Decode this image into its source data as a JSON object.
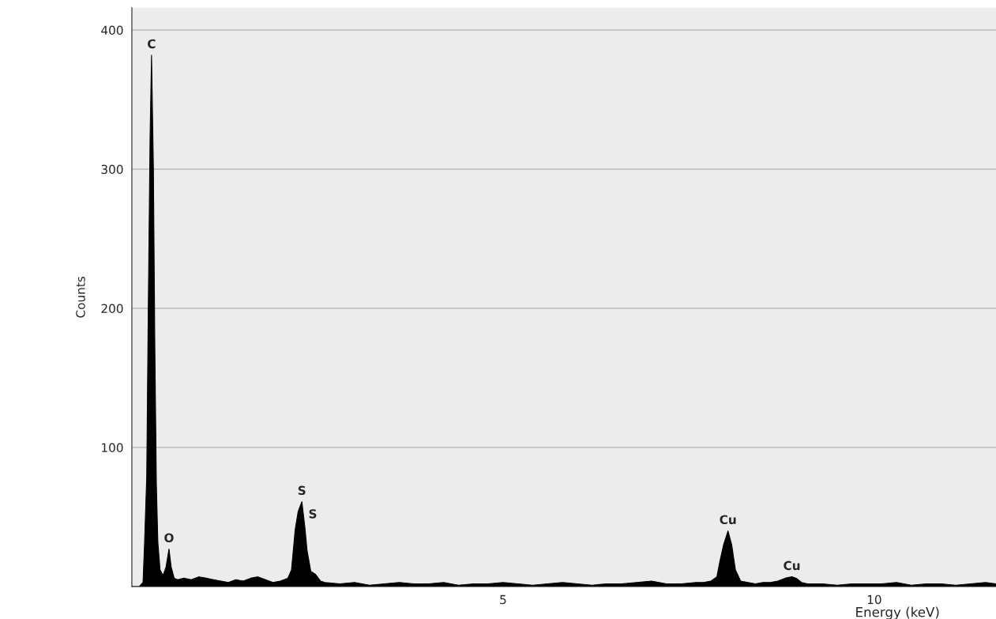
{
  "chart_data": {
    "type": "area",
    "xlabel": "Energy (keV)",
    "ylabel": "Counts",
    "x": [
      0.0,
      0.1,
      0.15,
      0.17,
      0.2,
      0.22,
      0.245,
      0.265,
      0.29,
      0.31,
      0.33,
      0.35,
      0.38,
      0.42,
      0.46,
      0.5,
      0.53,
      0.57,
      0.62,
      0.7,
      0.8,
      0.9,
      1.0,
      1.1,
      1.2,
      1.3,
      1.4,
      1.5,
      1.6,
      1.7,
      1.8,
      1.9,
      2.0,
      2.1,
      2.15,
      2.2,
      2.24,
      2.29,
      2.33,
      2.36,
      2.41,
      2.47,
      2.54,
      2.6,
      2.8,
      3.0,
      3.2,
      3.4,
      3.6,
      3.8,
      4.0,
      4.2,
      4.4,
      4.6,
      4.8,
      5.0,
      5.2,
      5.4,
      5.6,
      5.8,
      6.0,
      6.2,
      6.4,
      6.6,
      6.8,
      7.0,
      7.2,
      7.4,
      7.6,
      7.7,
      7.8,
      7.88,
      7.92,
      7.97,
      8.03,
      8.08,
      8.13,
      8.2,
      8.3,
      8.4,
      8.5,
      8.6,
      8.7,
      8.8,
      8.89,
      8.95,
      9.02,
      9.1,
      9.3,
      9.5,
      9.7,
      9.9,
      10.1,
      10.3,
      10.5,
      10.7,
      10.9,
      11.1,
      11.3,
      11.5,
      11.64
    ],
    "series": [
      {
        "color": "#000000",
        "values": [
          0,
          0,
          3,
          30,
          79,
          195,
          322,
          382,
          301,
          169,
          74,
          32,
          12,
          8,
          14,
          27,
          14,
          6,
          5,
          6,
          5,
          7,
          6,
          5,
          4,
          3,
          5,
          4,
          6,
          7,
          5,
          3,
          4,
          6,
          12,
          41,
          54,
          61,
          43,
          26,
          11,
          9,
          4,
          3,
          2,
          3,
          1,
          2,
          3,
          2,
          2,
          3,
          1,
          2,
          2,
          3,
          2,
          1,
          2,
          3,
          2,
          1,
          2,
          2,
          3,
          4,
          2,
          2,
          3,
          3,
          4,
          7,
          18,
          30,
          40,
          30,
          12,
          4,
          3,
          2,
          3,
          3,
          4,
          6,
          7,
          6,
          3,
          2,
          2,
          1,
          2,
          2,
          2,
          3,
          1,
          2,
          2,
          1,
          2,
          3,
          2
        ]
      }
    ],
    "xlim": [
      0,
      11.64
    ],
    "ylim": [
      0,
      416
    ],
    "xticks": [
      5,
      10
    ],
    "yticks": [
      100,
      200,
      300,
      400
    ],
    "grid": "y",
    "annotations": [
      {
        "text": "C",
        "x": 0.265,
        "y": 382
      },
      {
        "text": "O",
        "x": 0.5,
        "y": 27
      },
      {
        "text": "S",
        "x": 2.29,
        "y": 61
      },
      "S",
      {
        "text": "Cu",
        "x": 8.03,
        "y": 40
      },
      {
        "text": "Cu",
        "x": 8.89,
        "y": 7
      }
    ]
  }
}
